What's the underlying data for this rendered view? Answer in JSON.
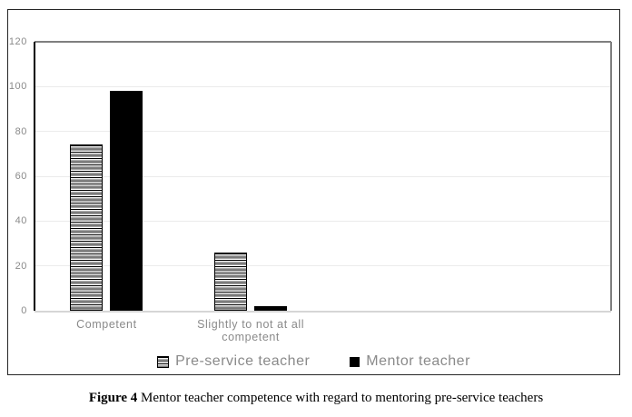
{
  "figure": {
    "caption_label": "Figure 4",
    "caption_text": "Mentor teacher competence with regard to mentoring pre-service teachers"
  },
  "chart_data": {
    "type": "bar",
    "title": "",
    "xlabel": "",
    "ylabel": "",
    "categories": [
      "Competent",
      "Slightly to not at all competent"
    ],
    "series": [
      {
        "name": "Pre-service teacher",
        "pattern": "horizontal-stripes",
        "color": "#000000",
        "values": [
          74,
          26
        ]
      },
      {
        "name": "Mentor teacher",
        "pattern": "solid",
        "color": "#000000",
        "values": [
          98,
          2
        ]
      }
    ],
    "ylim": [
      0,
      120
    ],
    "yticks": [
      0,
      20,
      40,
      60,
      80,
      100,
      120
    ],
    "grid": true,
    "legend_position": "bottom",
    "num_category_slots": 4,
    "colors": {
      "bar_fill": "#000000",
      "axis_text": "#8a8a8a",
      "gridline": "#ebebeb",
      "plot_border": "#7f7f7f",
      "y_axis_line": "#000000",
      "x_axis_line": "#d6d6d6",
      "frame_border": "#262626"
    }
  }
}
